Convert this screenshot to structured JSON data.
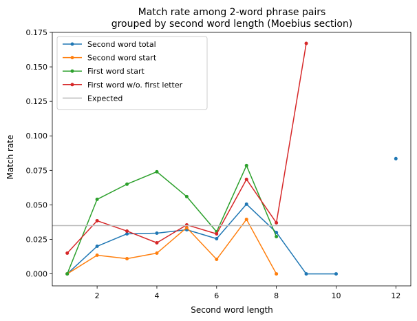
{
  "chart_data": {
    "type": "line",
    "title_lines": [
      "Match rate among 2-word phrase pairs",
      "grouped by second word length (Moebius section)"
    ],
    "xlabel": "Second word length",
    "ylabel": "Match rate",
    "xlim": [
      0.5,
      12.5
    ],
    "ylim": [
      -0.0087,
      0.175
    ],
    "xticks": [
      2,
      4,
      6,
      8,
      10,
      12
    ],
    "yticks": [
      0.0,
      0.025,
      0.05,
      0.075,
      0.1,
      0.125,
      0.15,
      0.175
    ],
    "ytick_labels": [
      "0.000",
      "0.025",
      "0.050",
      "0.075",
      "0.100",
      "0.125",
      "0.150",
      "0.175"
    ],
    "grid": false,
    "legend_position": "upper-left",
    "series": [
      {
        "name": "Second word total",
        "color": "#1f77b4",
        "marker": "dot",
        "points": [
          [
            1,
            0.0
          ],
          [
            2,
            0.02
          ],
          [
            3,
            0.029
          ],
          [
            4,
            0.0295
          ],
          [
            5,
            0.032
          ],
          [
            6,
            0.0255
          ],
          [
            7,
            0.0505
          ],
          [
            8,
            0.03
          ],
          [
            9,
            0.0
          ],
          [
            10,
            0.0
          ]
        ],
        "extra_points": [
          [
            12,
            0.0835
          ]
        ]
      },
      {
        "name": "Second word start",
        "color": "#ff7f0e",
        "marker": "dot",
        "points": [
          [
            1,
            0.0
          ],
          [
            2,
            0.0135
          ],
          [
            3,
            0.011
          ],
          [
            4,
            0.015
          ],
          [
            5,
            0.0335
          ],
          [
            6,
            0.0105
          ],
          [
            7,
            0.0395
          ],
          [
            8,
            0.0
          ]
        ]
      },
      {
        "name": "First word start",
        "color": "#2ca02c",
        "marker": "dot",
        "points": [
          [
            1,
            0.0
          ],
          [
            2,
            0.054
          ],
          [
            3,
            0.065
          ],
          [
            4,
            0.074
          ],
          [
            5,
            0.056
          ],
          [
            6,
            0.0305
          ],
          [
            7,
            0.0785
          ],
          [
            8,
            0.027
          ]
        ]
      },
      {
        "name": "First word w/o. first letter",
        "color": "#d62728",
        "marker": "dot",
        "points": [
          [
            1,
            0.015
          ],
          [
            2,
            0.0385
          ],
          [
            3,
            0.031
          ],
          [
            4,
            0.0225
          ],
          [
            5,
            0.0355
          ],
          [
            6,
            0.029
          ],
          [
            7,
            0.0685
          ],
          [
            8,
            0.037
          ],
          [
            9,
            0.167
          ]
        ]
      },
      {
        "name": "Expected",
        "color": "#bbbbbb",
        "type": "hline",
        "y": 0.035
      }
    ]
  }
}
